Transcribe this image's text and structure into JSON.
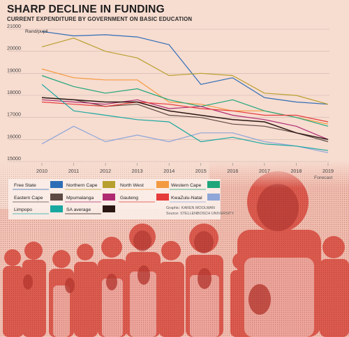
{
  "title": "SHARP DECLINE IN FUNDING",
  "subtitle": "CURRENT EXPENDITURE BY GOVERNMENT ON BASIC EDUCATION",
  "credits": {
    "graphic": "Graphic: KAREN MOOLMAN",
    "source": "Source: STELLENBOSCH UNIVERSITY"
  },
  "forecast_label": "Forecast",
  "colors": {
    "background": "#f7dcd0",
    "grid": "#cdb6ad",
    "photo_tint": "#d9534a"
  },
  "chart_data": {
    "type": "line",
    "ylabel": "Rand/pupil",
    "x": [
      "2010",
      "2011",
      "2012",
      "2013",
      "2014",
      "2015",
      "2016",
      "2017",
      "2018",
      "2019"
    ],
    "ylim": [
      15000,
      21000
    ],
    "yticks": [
      "21000",
      "20000",
      "19000",
      "18000",
      "17000",
      "16000",
      "15000"
    ],
    "grid": "horizontal",
    "legend_position": "bottom-left",
    "series": [
      {
        "name": "Free State",
        "color": "#2e6db6",
        "values": [
          20900,
          20700,
          20750,
          20650,
          20300,
          18500,
          18800,
          17900,
          17700,
          17600
        ]
      },
      {
        "name": "Northern Cape",
        "color": "#b8a02e",
        "values": [
          20200,
          20600,
          20000,
          19700,
          18900,
          19000,
          18900,
          18100,
          18000,
          17600
        ]
      },
      {
        "name": "North West",
        "color": "#f39a40",
        "values": [
          19200,
          18800,
          18700,
          18700,
          17700,
          17600,
          17300,
          17300,
          17000,
          16700
        ]
      },
      {
        "name": "Western Cape",
        "color": "#1ea67a",
        "values": [
          18900,
          18400,
          18100,
          18300,
          17800,
          17500,
          17800,
          17300,
          17000,
          16600
        ]
      },
      {
        "name": "Eastern Cape",
        "color": "#5e4a44",
        "values": [
          17900,
          17800,
          17500,
          17600,
          17100,
          17000,
          16700,
          16600,
          16300,
          15900
        ]
      },
      {
        "name": "Mpumalanga",
        "color": "#b02a72",
        "values": [
          17800,
          17700,
          17600,
          17800,
          17400,
          17500,
          17100,
          16900,
          16600,
          16000
        ]
      },
      {
        "name": "Gauteng",
        "color": "#e63b3b",
        "values": [
          17700,
          17600,
          17500,
          17700,
          17600,
          17400,
          17300,
          17100,
          17100,
          16800
        ]
      },
      {
        "name": "KwaZulu-Natal",
        "color": "#8ea6d8",
        "values": [
          15800,
          16600,
          15900,
          16200,
          15900,
          16300,
          16300,
          15900,
          15700,
          15400
        ]
      },
      {
        "name": "Limpopo",
        "color": "#18a8a0",
        "values": [
          18500,
          17300,
          17100,
          16900,
          16800,
          15900,
          16100,
          15800,
          15700,
          15500
        ]
      },
      {
        "name": "SA average",
        "color": "#2a1612",
        "values": [
          17900,
          17800,
          17700,
          17700,
          17300,
          17100,
          16900,
          16800,
          16300,
          16000
        ]
      }
    ]
  },
  "legend": [
    {
      "label": "Free State",
      "color": "#2e6db6"
    },
    {
      "label": "Northern Cape",
      "color": "#b8a02e"
    },
    {
      "label": "North West",
      "color": "#f39a40"
    },
    {
      "label": "Western Cape",
      "color": "#1ea67a"
    },
    {
      "label": "Eastern Cape",
      "color": "#5e4a44"
    },
    {
      "label": "Mpumalanga",
      "color": "#b02a72"
    },
    {
      "label": "Gauteng",
      "color": "#e63b3b"
    },
    {
      "label": "KwaZulu-Natal",
      "color": "#8ea6d8"
    },
    {
      "label": "Limpopo",
      "color": "#18a8a0"
    },
    {
      "label": "SA average",
      "color": "#2a1612"
    }
  ]
}
